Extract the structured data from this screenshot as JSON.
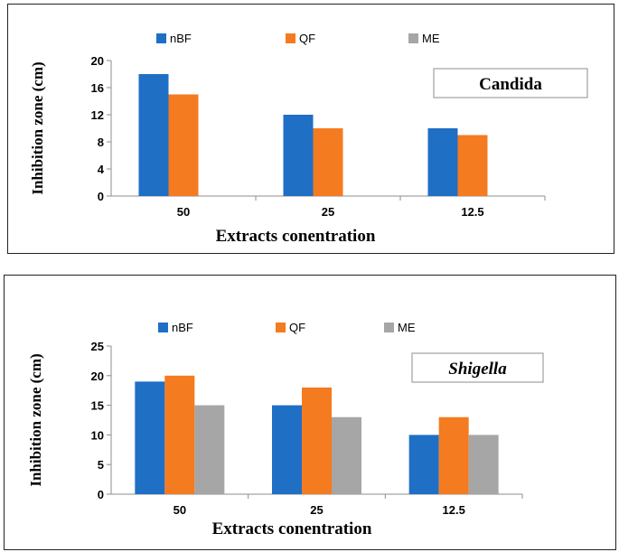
{
  "colors": {
    "nBF": "#1f6fc5",
    "QF": "#f47b20",
    "ME": "#a6a6a6"
  },
  "chart_data": [
    {
      "type": "bar",
      "title": "Candida",
      "title_italic": false,
      "categories": [
        "50",
        "25",
        "12.5"
      ],
      "series": [
        {
          "name": "nBF",
          "values": [
            18,
            12,
            10
          ]
        },
        {
          "name": "QF",
          "values": [
            15,
            10,
            9
          ]
        },
        {
          "name": "ME",
          "values": [
            0,
            0,
            0
          ]
        }
      ],
      "xlabel": "Extracts conentration",
      "ylabel": "Inhibition zone (cm)",
      "ylim": [
        0,
        20
      ],
      "yticks": [
        0,
        4,
        8,
        12,
        16,
        20
      ],
      "legend": "top",
      "grid": false
    },
    {
      "type": "bar",
      "title": "Shigella",
      "title_italic": true,
      "categories": [
        "50",
        "25",
        "12.5"
      ],
      "series": [
        {
          "name": "nBF",
          "values": [
            19,
            15,
            10
          ]
        },
        {
          "name": "QF",
          "values": [
            20,
            18,
            13
          ]
        },
        {
          "name": "ME",
          "values": [
            15,
            13,
            10
          ]
        }
      ],
      "xlabel": "Extracts conentration",
      "ylabel": "Inhibition zone (cm)",
      "ylim": [
        0,
        25
      ],
      "yticks": [
        0,
        5,
        10,
        15,
        20,
        25
      ],
      "legend": "top",
      "grid": false
    }
  ]
}
